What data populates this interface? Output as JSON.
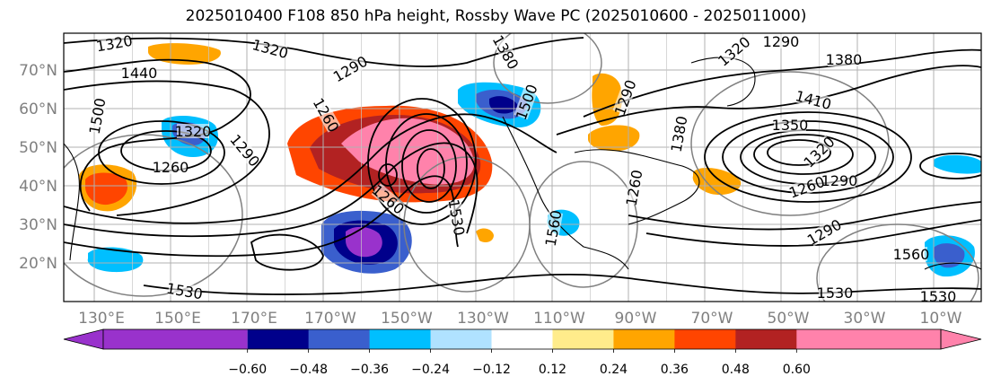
{
  "title": "2025010400 F108 850 hPa height, Rossby Wave PC (2025010600 - 2025011000)",
  "lat_ticks": [
    "70°N",
    "60°N",
    "50°N",
    "40°N",
    "30°N",
    "20°N"
  ],
  "lon_ticks": [
    "130°E",
    "150°E",
    "170°E",
    "170°W",
    "150°W",
    "130°W",
    "110°W",
    "90°W",
    "70°W",
    "50°W",
    "30°W",
    "10°W"
  ],
  "contour_labels": [
    "1320",
    "1320",
    "1440",
    "1290",
    "1380",
    "1500",
    "1320",
    "1290",
    "1260",
    "1260",
    "1290",
    "1260",
    "1290",
    "1320",
    "1410",
    "1380",
    "1350",
    "1320",
    "1290",
    "1260",
    "1290",
    "1530",
    "1560",
    "1530",
    "1530",
    "1560",
    "1530",
    "1260",
    "1380",
    "1500"
  ],
  "colorbar": {
    "ticks": [
      "−0.60",
      "−0.48",
      "−0.36",
      "−0.24",
      "−0.12",
      "0.12",
      "0.24",
      "0.36",
      "0.48",
      "0.60"
    ],
    "colors": [
      "#9932cc",
      "#00008b",
      "#3a5fcd",
      "#00bfff",
      "#b0e2ff",
      "#ffffff",
      "#ffec8b",
      "#ffa500",
      "#ff4500",
      "#b22222",
      "#ff82ab"
    ]
  }
}
